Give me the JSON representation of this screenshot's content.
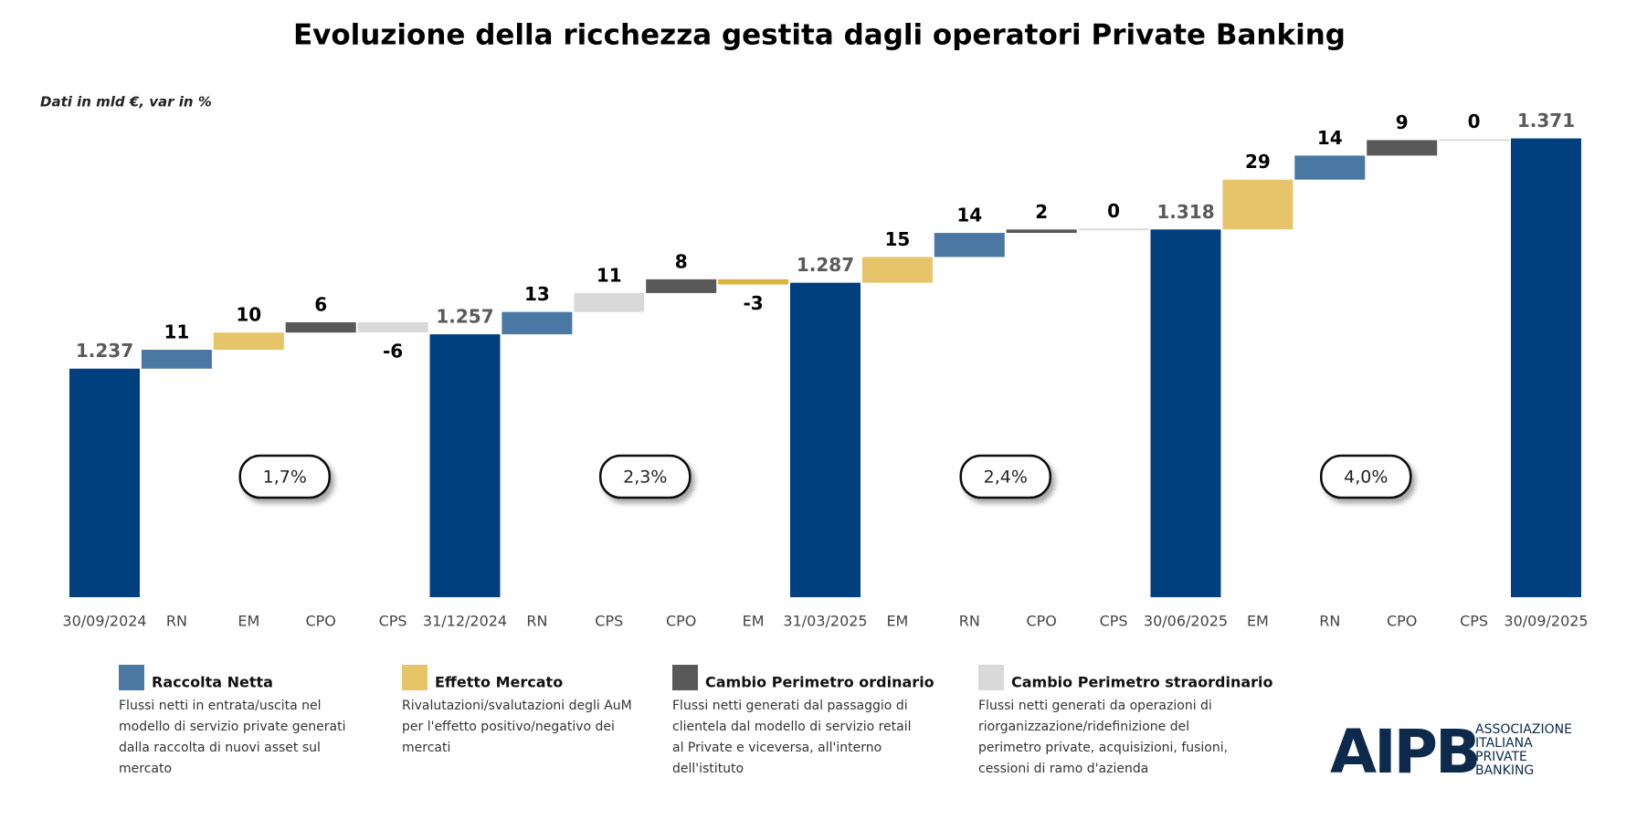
{
  "chart_data": {
    "type": "waterfall",
    "title": "Evoluzione della ricchezza gestita dagli operatori Private Banking",
    "subtitle": "Dati in mld €, var in %",
    "categories": [
      "30/09/2024",
      "RN",
      "EM",
      "CPO",
      "CPS",
      "31/12/2024",
      "RN",
      "CPS",
      "CPO",
      "EM",
      "31/03/2025",
      "EM",
      "RN",
      "CPO",
      "CPS",
      "30/06/2025",
      "EM",
      "RN",
      "CPO",
      "CPS",
      "30/09/2025"
    ],
    "values": [
      1237,
      11,
      10,
      6,
      -6,
      1257,
      13,
      11,
      8,
      -3,
      1287,
      15,
      14,
      2,
      0,
      1318,
      29,
      14,
      9,
      0,
      1371
    ],
    "value_labels": [
      "1.237",
      "11",
      "10",
      "6",
      "-6",
      "1.257",
      "13",
      "11",
      "8",
      "-3",
      "1.287",
      "15",
      "14",
      "2",
      "0",
      "1.318",
      "29",
      "14",
      "9",
      "0",
      "1.371"
    ],
    "is_total": [
      true,
      false,
      false,
      false,
      false,
      true,
      false,
      false,
      false,
      false,
      true,
      false,
      false,
      false,
      false,
      true,
      false,
      false,
      false,
      false,
      true
    ],
    "colors": [
      "#003f7d",
      "#4a78a2",
      "#e6c56a",
      "#595959",
      "#d9d9d9",
      "#003f7d",
      "#4a78a2",
      "#d9d9d9",
      "#595959",
      "#d8b43c",
      "#003f7d",
      "#e6c56a",
      "#4a78a2",
      "#595959",
      "#d9d9d9",
      "#003f7d",
      "#e6c56a",
      "#4a78a2",
      "#595959",
      "#d9d9d9",
      "#003f7d"
    ],
    "ylim": [
      1104,
      1400
    ],
    "growth": [
      {
        "value": 1.7,
        "label": "1,7%"
      },
      {
        "value": 2.3,
        "label": "2,3%"
      },
      {
        "value": 2.4,
        "label": "2,4%"
      },
      {
        "value": 4.0,
        "label": "4,0%"
      }
    ],
    "legend": [
      {
        "name": "Raccolta Netta",
        "color": "#4a78a2",
        "description": [
          "Flussi netti in entrata/uscita nel",
          "modello di servizio private generati",
          "dalla raccolta di nuovi asset sul",
          "mercato"
        ]
      },
      {
        "name": "Effetto Mercato",
        "color": "#e6c56a",
        "description": [
          "Rivalutazioni/svalutazioni degli AuM",
          "per l'effetto positivo/negativo dei",
          "mercati"
        ]
      },
      {
        "name": "Cambio Perimetro ordinario",
        "color": "#595959",
        "description": [
          "Flussi netti generati dal passaggio di",
          "clientela dal modello di servizio retail",
          "al Private e viceversa, all'interno",
          "dell'istituto"
        ]
      },
      {
        "name": "Cambio Perimetro straordinario",
        "color": "#d9d9d9",
        "description": [
          "Flussi netti generati da operazioni di",
          "riorganizzazione/ridefinizione del",
          "perimetro private, acquisizioni, fusioni,",
          "cessioni di ramo d'azienda"
        ]
      }
    ]
  },
  "logo": {
    "mark": "AIPB",
    "lines": [
      "ASSOCIAZIONE",
      "ITALIANA",
      "PRIVATE",
      "BANKING"
    ]
  }
}
